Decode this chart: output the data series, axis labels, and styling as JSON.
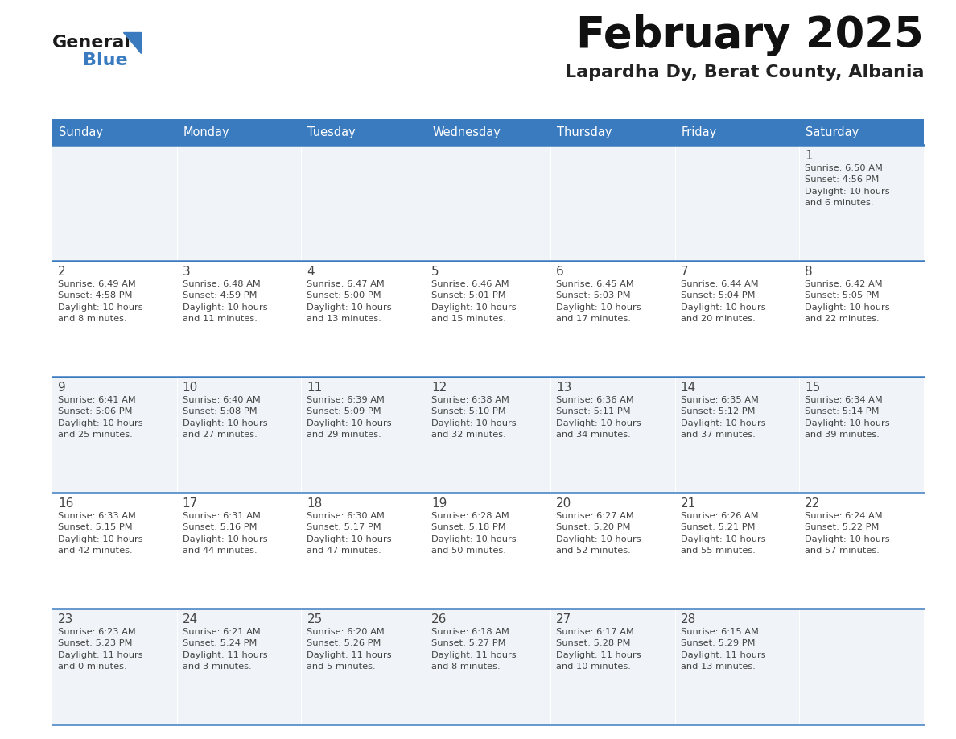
{
  "title": "February 2025",
  "subtitle": "Lapardha Dy, Berat County, Albania",
  "header_color": "#3a7bbf",
  "header_text_color": "#ffffff",
  "days_of_week": [
    "Sunday",
    "Monday",
    "Tuesday",
    "Wednesday",
    "Thursday",
    "Friday",
    "Saturday"
  ],
  "bg_color": "#ffffff",
  "cell_bg_light": "#f0f4f8",
  "cell_bg_white": "#ffffff",
  "separator_color": "#3a7bbf",
  "text_color": "#444444",
  "logo_general_color": "#1a1a1a",
  "logo_blue_color": "#3a7bbf",
  "logo_triangle_color": "#3a7bbf",
  "calendar": [
    [
      {
        "day": null,
        "info": null
      },
      {
        "day": null,
        "info": null
      },
      {
        "day": null,
        "info": null
      },
      {
        "day": null,
        "info": null
      },
      {
        "day": null,
        "info": null
      },
      {
        "day": null,
        "info": null
      },
      {
        "day": 1,
        "info": "Sunrise: 6:50 AM\nSunset: 4:56 PM\nDaylight: 10 hours\nand 6 minutes."
      }
    ],
    [
      {
        "day": 2,
        "info": "Sunrise: 6:49 AM\nSunset: 4:58 PM\nDaylight: 10 hours\nand 8 minutes."
      },
      {
        "day": 3,
        "info": "Sunrise: 6:48 AM\nSunset: 4:59 PM\nDaylight: 10 hours\nand 11 minutes."
      },
      {
        "day": 4,
        "info": "Sunrise: 6:47 AM\nSunset: 5:00 PM\nDaylight: 10 hours\nand 13 minutes."
      },
      {
        "day": 5,
        "info": "Sunrise: 6:46 AM\nSunset: 5:01 PM\nDaylight: 10 hours\nand 15 minutes."
      },
      {
        "day": 6,
        "info": "Sunrise: 6:45 AM\nSunset: 5:03 PM\nDaylight: 10 hours\nand 17 minutes."
      },
      {
        "day": 7,
        "info": "Sunrise: 6:44 AM\nSunset: 5:04 PM\nDaylight: 10 hours\nand 20 minutes."
      },
      {
        "day": 8,
        "info": "Sunrise: 6:42 AM\nSunset: 5:05 PM\nDaylight: 10 hours\nand 22 minutes."
      }
    ],
    [
      {
        "day": 9,
        "info": "Sunrise: 6:41 AM\nSunset: 5:06 PM\nDaylight: 10 hours\nand 25 minutes."
      },
      {
        "day": 10,
        "info": "Sunrise: 6:40 AM\nSunset: 5:08 PM\nDaylight: 10 hours\nand 27 minutes."
      },
      {
        "day": 11,
        "info": "Sunrise: 6:39 AM\nSunset: 5:09 PM\nDaylight: 10 hours\nand 29 minutes."
      },
      {
        "day": 12,
        "info": "Sunrise: 6:38 AM\nSunset: 5:10 PM\nDaylight: 10 hours\nand 32 minutes."
      },
      {
        "day": 13,
        "info": "Sunrise: 6:36 AM\nSunset: 5:11 PM\nDaylight: 10 hours\nand 34 minutes."
      },
      {
        "day": 14,
        "info": "Sunrise: 6:35 AM\nSunset: 5:12 PM\nDaylight: 10 hours\nand 37 minutes."
      },
      {
        "day": 15,
        "info": "Sunrise: 6:34 AM\nSunset: 5:14 PM\nDaylight: 10 hours\nand 39 minutes."
      }
    ],
    [
      {
        "day": 16,
        "info": "Sunrise: 6:33 AM\nSunset: 5:15 PM\nDaylight: 10 hours\nand 42 minutes."
      },
      {
        "day": 17,
        "info": "Sunrise: 6:31 AM\nSunset: 5:16 PM\nDaylight: 10 hours\nand 44 minutes."
      },
      {
        "day": 18,
        "info": "Sunrise: 6:30 AM\nSunset: 5:17 PM\nDaylight: 10 hours\nand 47 minutes."
      },
      {
        "day": 19,
        "info": "Sunrise: 6:28 AM\nSunset: 5:18 PM\nDaylight: 10 hours\nand 50 minutes."
      },
      {
        "day": 20,
        "info": "Sunrise: 6:27 AM\nSunset: 5:20 PM\nDaylight: 10 hours\nand 52 minutes."
      },
      {
        "day": 21,
        "info": "Sunrise: 6:26 AM\nSunset: 5:21 PM\nDaylight: 10 hours\nand 55 minutes."
      },
      {
        "day": 22,
        "info": "Sunrise: 6:24 AM\nSunset: 5:22 PM\nDaylight: 10 hours\nand 57 minutes."
      }
    ],
    [
      {
        "day": 23,
        "info": "Sunrise: 6:23 AM\nSunset: 5:23 PM\nDaylight: 11 hours\nand 0 minutes."
      },
      {
        "day": 24,
        "info": "Sunrise: 6:21 AM\nSunset: 5:24 PM\nDaylight: 11 hours\nand 3 minutes."
      },
      {
        "day": 25,
        "info": "Sunrise: 6:20 AM\nSunset: 5:26 PM\nDaylight: 11 hours\nand 5 minutes."
      },
      {
        "day": 26,
        "info": "Sunrise: 6:18 AM\nSunset: 5:27 PM\nDaylight: 11 hours\nand 8 minutes."
      },
      {
        "day": 27,
        "info": "Sunrise: 6:17 AM\nSunset: 5:28 PM\nDaylight: 11 hours\nand 10 minutes."
      },
      {
        "day": 28,
        "info": "Sunrise: 6:15 AM\nSunset: 5:29 PM\nDaylight: 11 hours\nand 13 minutes."
      },
      {
        "day": null,
        "info": null
      }
    ]
  ]
}
